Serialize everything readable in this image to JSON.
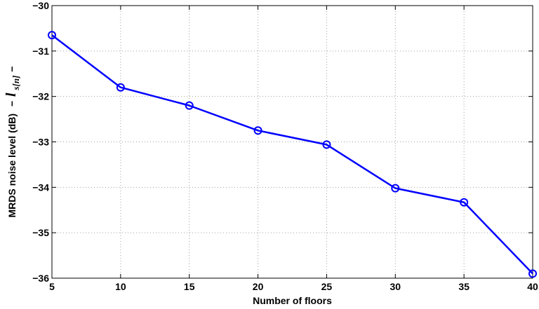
{
  "chart_data": {
    "type": "line",
    "xlabel": "Number of floors",
    "ylabel": {
      "text": "MRDS noise level (dB)",
      "math_prefix": "−",
      "math_symbol": "l",
      "math_subscript": "s[n]",
      "math_suffix": "−"
    },
    "xlim": [
      5,
      40
    ],
    "ylim": [
      -36,
      -30
    ],
    "xticks": [
      5,
      10,
      15,
      20,
      25,
      30,
      35,
      40
    ],
    "yticks": [
      -36,
      -35,
      -34,
      -33,
      -32,
      -31,
      -30
    ],
    "xtick_labels": [
      "5",
      "10",
      "15",
      "20",
      "25",
      "30",
      "35",
      "40"
    ],
    "ytick_labels": [
      "−36",
      "−35",
      "−34",
      "−33",
      "−32",
      "−31",
      "−30"
    ],
    "grid": true,
    "series": [
      {
        "color": "#0000ff",
        "marker": "circle",
        "x": [
          5,
          10,
          15,
          20,
          25,
          30,
          35,
          40
        ],
        "y": [
          -30.65,
          -31.8,
          -32.2,
          -32.75,
          -33.06,
          -34.02,
          -34.33,
          -35.9
        ]
      }
    ]
  }
}
